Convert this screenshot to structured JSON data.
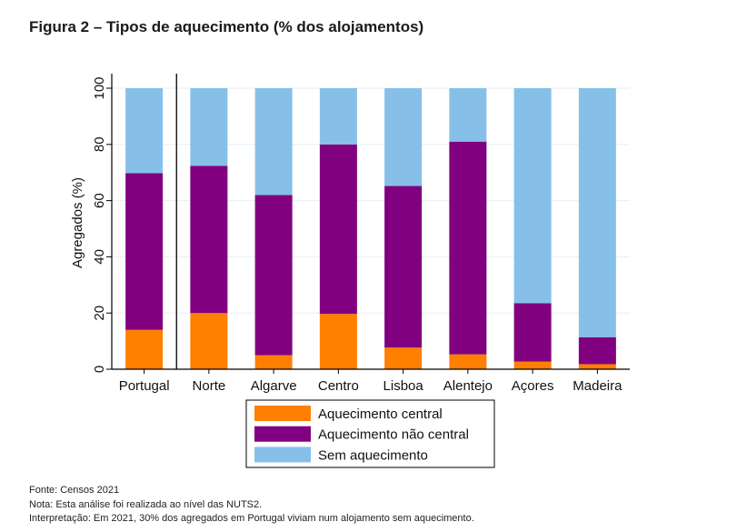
{
  "title": "Figura 2 – Tipos de aquecimento (% dos alojamentos)",
  "chart_data": {
    "type": "bar",
    "stacked": true,
    "categories": [
      "Portugal",
      "Norte",
      "Algarve",
      "Centro",
      "Lisboa",
      "Alentejo",
      "Açores",
      "Madeira"
    ],
    "series": [
      {
        "name": "Aquecimento central",
        "color": "#ff7f00",
        "values": [
          14,
          20,
          5,
          19.7,
          7.7,
          5.3,
          2.7,
          1.8
        ]
      },
      {
        "name": "Aquecimento não central",
        "color": "#800080",
        "values": [
          55.8,
          52.4,
          57,
          60.3,
          57.5,
          75.7,
          20.8,
          9.6
        ]
      },
      {
        "name": "Sem aquecimento",
        "color": "#86c0e9",
        "values": [
          30.2,
          27.6,
          38,
          20,
          34.8,
          19,
          76.5,
          88.6
        ]
      }
    ],
    "ylabel": "Agregados (%)",
    "xlabel": "",
    "ylim": [
      0,
      100
    ],
    "yticks": [
      0,
      20,
      40,
      60,
      80,
      100
    ],
    "grid": true,
    "separator_after_category": "Portugal",
    "legend": {
      "position": "bottom",
      "entries": [
        "Aquecimento central",
        "Aquecimento não central",
        "Sem aquecimento"
      ]
    }
  },
  "notes": {
    "source": "Fonte: Censos 2021",
    "note": "Nota: Esta análise foi realizada ao nível das NUTS2.",
    "interpretation": "Interpretação: Em 2021, 30% dos agregados em Portugal viviam num alojamento sem aquecimento."
  }
}
